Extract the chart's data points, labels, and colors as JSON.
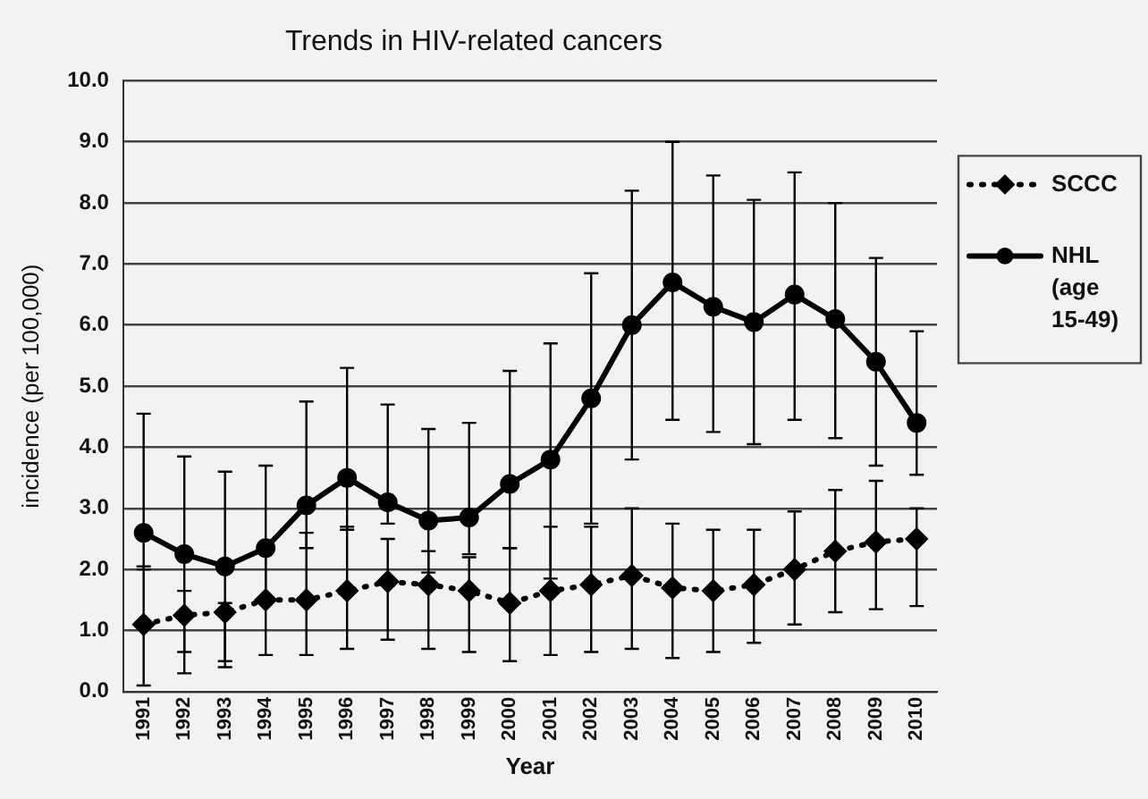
{
  "chart_data": {
    "type": "line",
    "title": "Trends in HIV-related cancers",
    "xlabel": "Year",
    "ylabel": "incidence (per 100,000)",
    "categories": [
      "1991",
      "1992",
      "1993",
      "1994",
      "1995",
      "1996",
      "1997",
      "1998",
      "1999",
      "2000",
      "2001",
      "2002",
      "2003",
      "2004",
      "2005",
      "2006",
      "2007",
      "2008",
      "2009",
      "2010"
    ],
    "series": [
      {
        "name": "SCCC",
        "color": "#000000",
        "marker": "diamond",
        "line_style": "dotted",
        "values": [
          1.1,
          1.25,
          1.3,
          1.5,
          1.5,
          1.65,
          1.8,
          1.75,
          1.65,
          1.45,
          1.65,
          1.75,
          1.9,
          1.7,
          1.65,
          1.75,
          2.0,
          2.3,
          2.45,
          2.5
        ],
        "errors": [
          [
            0.1,
            2.05
          ],
          [
            0.3,
            1.65
          ],
          [
            0.4,
            1.45
          ],
          [
            0.6,
            2.3
          ],
          [
            0.6,
            2.6
          ],
          [
            0.7,
            2.7
          ],
          [
            0.85,
            2.5
          ],
          [
            0.7,
            2.3
          ],
          [
            0.65,
            2.2
          ],
          [
            0.5,
            2.35
          ],
          [
            0.6,
            2.7
          ],
          [
            0.65,
            2.7
          ],
          [
            0.7,
            3.0
          ],
          [
            0.55,
            2.75
          ],
          [
            0.65,
            2.65
          ],
          [
            0.8,
            2.65
          ],
          [
            1.1,
            2.95
          ],
          [
            1.3,
            3.3
          ],
          [
            1.35,
            3.45
          ],
          [
            1.4,
            3.0
          ]
        ]
      },
      {
        "name": "NHL (age 15-49)",
        "color": "#000000",
        "marker": "circle",
        "line_style": "solid",
        "values": [
          2.6,
          2.25,
          2.05,
          2.35,
          3.05,
          3.5,
          3.1,
          2.8,
          2.85,
          3.4,
          3.8,
          4.8,
          6.0,
          6.7,
          6.3,
          6.05,
          6.5,
          6.1,
          5.4,
          4.4
        ],
        "errors": [
          [
            2.0,
            4.55
          ],
          [
            0.65,
            3.85
          ],
          [
            0.5,
            3.6
          ],
          [
            1.55,
            3.7
          ],
          [
            2.35,
            4.75
          ],
          [
            2.65,
            5.3
          ],
          [
            2.75,
            4.7
          ],
          [
            1.95,
            4.3
          ],
          [
            2.25,
            4.4
          ],
          [
            2.35,
            5.25
          ],
          [
            1.85,
            5.7
          ],
          [
            2.75,
            6.85
          ],
          [
            3.8,
            8.2
          ],
          [
            4.45,
            9.0
          ],
          [
            4.25,
            8.45
          ],
          [
            4.05,
            8.05
          ],
          [
            4.45,
            8.5
          ],
          [
            4.15,
            8.0
          ],
          [
            3.7,
            7.1
          ],
          [
            3.55,
            5.9
          ]
        ]
      }
    ],
    "ylim": [
      0,
      10
    ],
    "yticks": [
      {
        "value": 0,
        "label": "0.0"
      },
      {
        "value": 1,
        "label": "1.0"
      },
      {
        "value": 2,
        "label": "2.0"
      },
      {
        "value": 3,
        "label": "3.0"
      },
      {
        "value": 4,
        "label": "4.0"
      },
      {
        "value": 5,
        "label": "5.0"
      },
      {
        "value": 6,
        "label": "6.0"
      },
      {
        "value": 7,
        "label": "7.0"
      },
      {
        "value": 8,
        "label": "8.0"
      },
      {
        "value": 9,
        "label": "9.0"
      },
      {
        "value": 10,
        "label": "10.0"
      }
    ],
    "grid": "y",
    "legend": "right"
  }
}
